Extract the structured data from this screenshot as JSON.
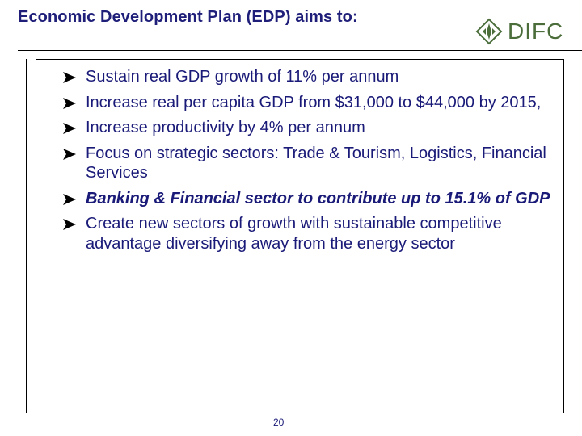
{
  "slide": {
    "title": "Economic Development Plan (EDP) aims to:",
    "logo_text": "DIFC",
    "bullets": [
      {
        "text": "Sustain real GDP growth of 11% per annum",
        "emphasis": false
      },
      {
        "text": "Increase real per capita GDP from $31,000 to $44,000 by 2015,",
        "emphasis": false
      },
      {
        "text": "Increase productivity by 4% per annum",
        "emphasis": false
      },
      {
        "text": "Focus on strategic sectors: Trade & Tourism, Logistics, Financial Services",
        "emphasis": false
      },
      {
        "text": "Banking & Financial sector to contribute up to 15.1% of GDP",
        "emphasis": true
      },
      {
        "text": "Create new sectors of growth with sustainable competitive advantage diversifying away from the energy sector",
        "emphasis": false
      }
    ],
    "page_number": "20"
  },
  "colors": {
    "title": "#1f1f7a",
    "body_text": "#1a1a78",
    "logo": "#4a6d3a"
  },
  "icons": {
    "bullet": "arrow-bullet-icon",
    "logo": "difc-diamond-logo-icon"
  }
}
